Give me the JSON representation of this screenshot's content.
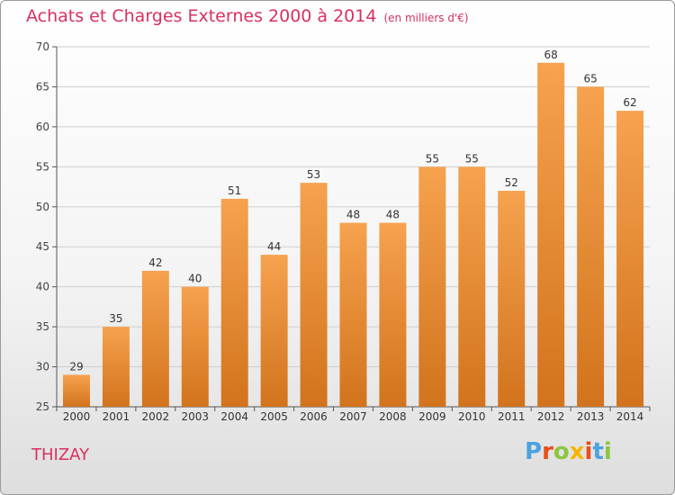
{
  "header": {
    "title": "Achats et Charges Externes 2000 à 2014",
    "subtitle": "(en milliers d'€)"
  },
  "footer": {
    "place": "THIZAY",
    "logo": "Proxiti",
    "logo_colors": [
      "#4aa3df",
      "#e94e1b",
      "#8cc63f",
      "#f7b500",
      "#e94e1b",
      "#4aa3df",
      "#8cc63f"
    ]
  },
  "colors": {
    "bar_top": "#f6a24e",
    "bar_bottom": "#d2731d",
    "title": "#d9305f"
  },
  "chart_data": {
    "type": "bar",
    "title": "Achats et Charges Externes 2000 à 2014",
    "subtitle": "(en milliers d'€)",
    "xlabel": "",
    "ylabel": "",
    "categories": [
      "2000",
      "2001",
      "2002",
      "2003",
      "2004",
      "2005",
      "2006",
      "2007",
      "2008",
      "2009",
      "2010",
      "2011",
      "2012",
      "2013",
      "2014"
    ],
    "values": [
      29,
      35,
      42,
      40,
      51,
      44,
      53,
      48,
      48,
      55,
      55,
      52,
      68,
      65,
      62
    ],
    "ylim": [
      25,
      70
    ],
    "yticks": [
      25,
      30,
      35,
      40,
      45,
      50,
      55,
      60,
      65,
      70
    ],
    "grid": true,
    "data_labels": true
  }
}
